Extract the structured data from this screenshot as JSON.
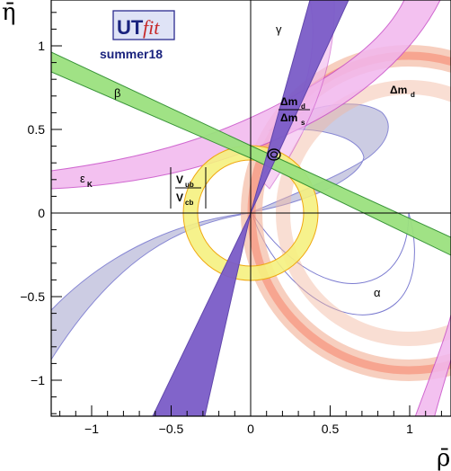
{
  "chart_data": {
    "type": "scatter",
    "xlabel": "ρ̄",
    "ylabel": "η̄",
    "xlim": [
      -1.22,
      1.22
    ],
    "ylim": [
      -1.22,
      1.3
    ],
    "xticks": [
      -1,
      -0.5,
      0,
      0.5,
      1
    ],
    "xtick_labels": [
      "−1",
      "−0.5",
      "0",
      "0.5",
      "1"
    ],
    "yticks": [
      -1,
      -0.5,
      0,
      0.5,
      1
    ],
    "ytick_labels": [
      "−1",
      "−0.5",
      "0",
      "0.5",
      "1"
    ],
    "logo": {
      "text_main": "UT",
      "text_italic": "fit",
      "edition": "summer18"
    },
    "constraints": [
      {
        "name": "γ",
        "color": "#7b5cc8"
      },
      {
        "name": "β",
        "color": "#9be17f"
      },
      {
        "name": "ε_K",
        "color": "#ea9be8"
      },
      {
        "name": "α",
        "color": "#c7c7e0"
      },
      {
        "name": "Δm_d",
        "color": "#f7a08a"
      },
      {
        "name": "Δm_d/Δm_s",
        "color": "#f2b59d"
      },
      {
        "name": "|V_ub/V_cb|",
        "color": "#f5f17f"
      }
    ],
    "labels": {
      "gamma": "γ",
      "beta": "β",
      "epsK_main": "ε",
      "epsK_sub": "K",
      "alpha": "α",
      "dmd_main": "Δm",
      "dmd_sub": "d",
      "ratio_num_main": "Δm",
      "ratio_num_sub": "d",
      "ratio_den_main": "Δm",
      "ratio_den_sub": "s",
      "vub_main": "V",
      "vub_sub": "ub",
      "vcb_main": "V",
      "vcb_sub": "cb"
    },
    "fit_result": {
      "rho": 0.156,
      "eta": 0.35
    },
    "grid": false
  }
}
